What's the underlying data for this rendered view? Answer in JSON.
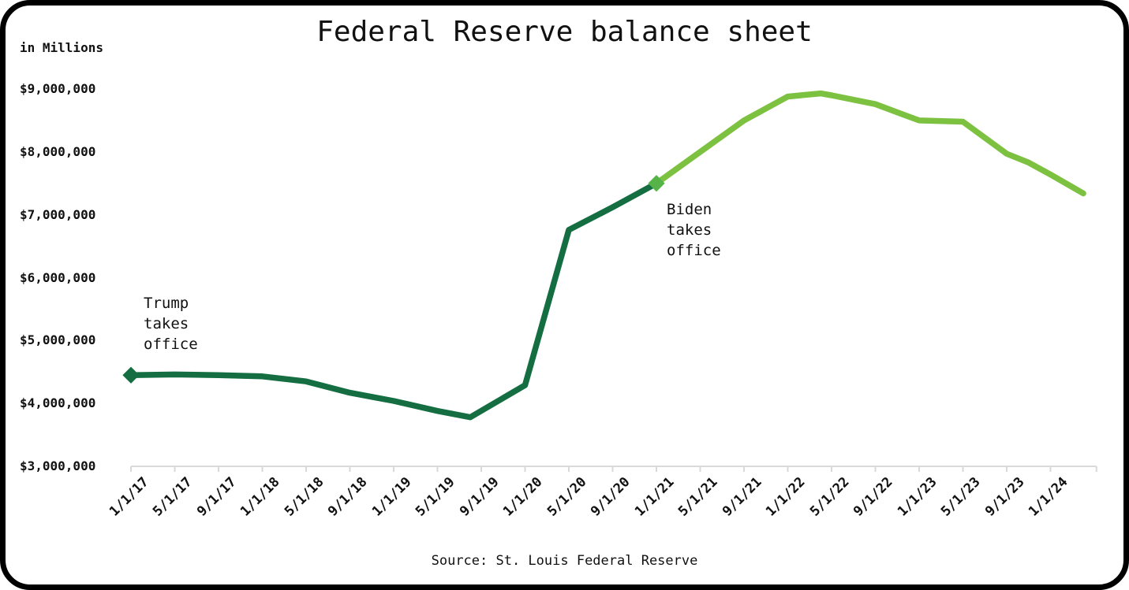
{
  "header": {
    "title": "Federal Reserve balance sheet",
    "y_axis_unit_label": "in Millions"
  },
  "annotations": {
    "trump": "Trump\ntakes\noffice",
    "biden": "Biden\ntakes\noffice"
  },
  "footer": {
    "source": "Source: St. Louis Federal Reserve"
  },
  "colors": {
    "trump_line": "#146e41",
    "biden_line": "#7dc141",
    "trump_marker": "#146e41",
    "biden_marker": "#55b348",
    "axis": "#d9d9d9",
    "text": "#111111",
    "frame": "#000000",
    "background": "#ffffff"
  },
  "chart_data": {
    "type": "line",
    "title": "Federal Reserve balance sheet",
    "ylabel": "in Millions",
    "xlabel": "",
    "grid": false,
    "legend": "none",
    "ylim": [
      3000000,
      9000000
    ],
    "y_tick_interval": 1000000,
    "y_tick_labels": [
      "$9,000,000",
      "$8,000,000",
      "$7,000,000",
      "$6,000,000",
      "$5,000,000",
      "$4,000,000",
      "$3,000,000"
    ],
    "y_tick_values": [
      9000000,
      8000000,
      7000000,
      6000000,
      5000000,
      4000000,
      3000000
    ],
    "x_tick_labels": [
      "1/1/17",
      "5/1/17",
      "9/1/17",
      "1/1/18",
      "5/1/18",
      "9/1/18",
      "1/1/19",
      "5/1/19",
      "9/1/19",
      "1/1/20",
      "5/1/20",
      "9/1/20",
      "1/1/21",
      "5/1/21",
      "9/1/21",
      "1/1/22",
      "5/1/22",
      "9/1/22",
      "1/1/23",
      "5/1/23",
      "9/1/23",
      "1/1/24"
    ],
    "x_tick_interval_months": 4,
    "x_axis_end_month": 88.2,
    "series": [
      {
        "name": "Trump term (dark green)",
        "color_key": "trump_line",
        "points": [
          {
            "date": "1/1/17",
            "month": 0,
            "value": 4450000
          },
          {
            "date": "5/1/17",
            "month": 4,
            "value": 4460000
          },
          {
            "date": "9/1/17",
            "month": 8,
            "value": 4450000
          },
          {
            "date": "1/1/18",
            "month": 12,
            "value": 4430000
          },
          {
            "date": "5/1/18",
            "month": 16,
            "value": 4350000
          },
          {
            "date": "9/1/18",
            "month": 20,
            "value": 4170000
          },
          {
            "date": "1/1/19",
            "month": 24,
            "value": 4040000
          },
          {
            "date": "5/1/19",
            "month": 28,
            "value": 3880000
          },
          {
            "date": "8/1/19",
            "month": 31,
            "value": 3780000
          },
          {
            "date": "1/1/20",
            "month": 36,
            "value": 4290000
          },
          {
            "date": "5/1/20",
            "month": 40,
            "value": 6760000
          },
          {
            "date": "9/1/20",
            "month": 44,
            "value": 7120000
          },
          {
            "date": "1/1/21",
            "month": 48,
            "value": 7500000
          }
        ]
      },
      {
        "name": "Biden term (light green)",
        "color_key": "biden_line",
        "points": [
          {
            "date": "1/1/21",
            "month": 48,
            "value": 7500000
          },
          {
            "date": "5/1/21",
            "month": 52,
            "value": 8000000
          },
          {
            "date": "9/1/21",
            "month": 56,
            "value": 8500000
          },
          {
            "date": "1/1/22",
            "month": 60,
            "value": 8880000
          },
          {
            "date": "4/1/22",
            "month": 63,
            "value": 8930000
          },
          {
            "date": "5/1/22",
            "month": 64,
            "value": 8900000
          },
          {
            "date": "9/1/22",
            "month": 68,
            "value": 8760000
          },
          {
            "date": "1/1/23",
            "month": 72,
            "value": 8500000
          },
          {
            "date": "5/1/23",
            "month": 76,
            "value": 8480000
          },
          {
            "date": "9/1/23",
            "month": 80,
            "value": 7970000
          },
          {
            "date": "11/1/23",
            "month": 82,
            "value": 7830000
          },
          {
            "date": "1/1/24",
            "month": 84,
            "value": 7640000
          },
          {
            "date": "4/1/24",
            "month": 87,
            "value": 7340000
          }
        ]
      }
    ],
    "markers": [
      {
        "date": "1/1/17",
        "month": 0,
        "value": 4450000,
        "color_key": "trump_marker",
        "annotation_key": "trump",
        "name": "trump-marker"
      },
      {
        "date": "1/1/21",
        "month": 48,
        "value": 7500000,
        "color_key": "biden_marker",
        "annotation_key": "biden",
        "name": "biden-marker"
      }
    ]
  }
}
